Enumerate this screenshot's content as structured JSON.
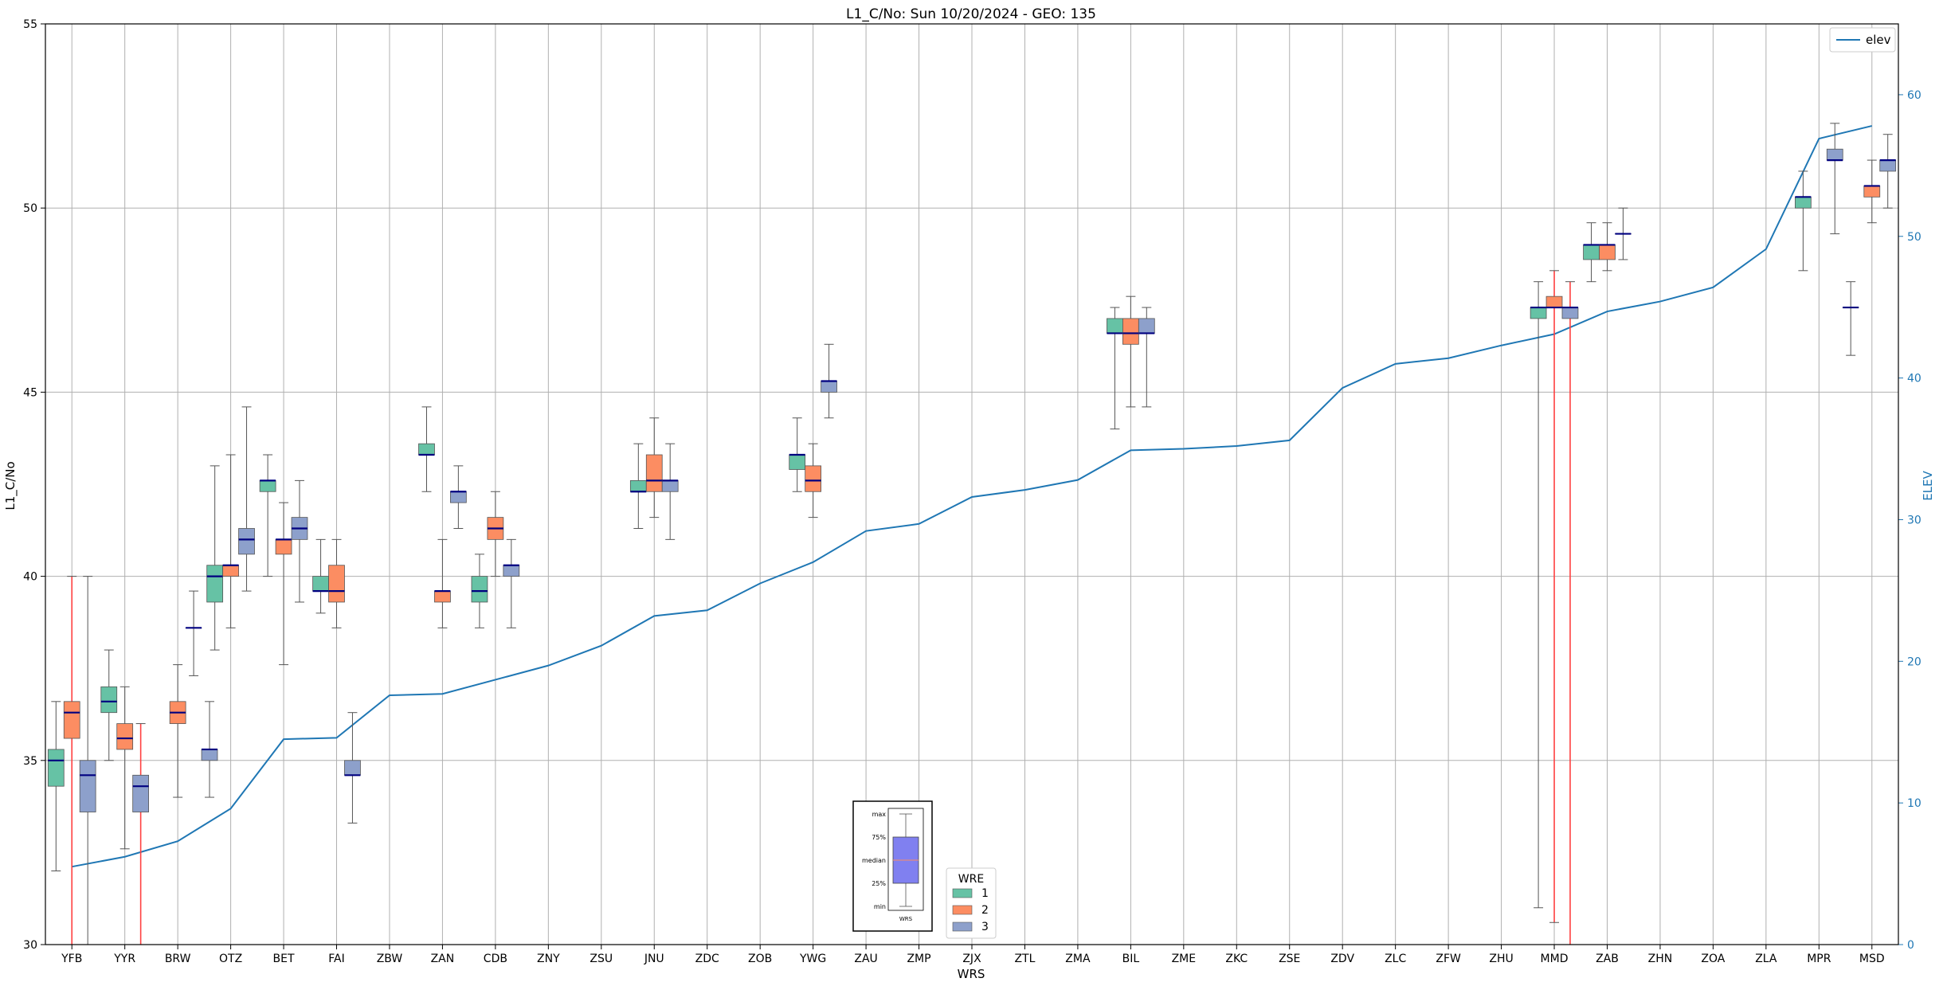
{
  "chart_data": {
    "type": "box",
    "title": "L1_C/No: Sun 10/20/2024 - GEO: 135",
    "xlabel": "WRS",
    "ylabel": "L1_C/No",
    "y2label": "ELEV",
    "ylim": [
      30,
      55
    ],
    "y2lim": [
      0,
      65
    ],
    "yticks": [
      "30",
      "35",
      "40",
      "45",
      "50",
      "55"
    ],
    "y2ticks": [
      "0",
      "10",
      "20",
      "30",
      "40",
      "50",
      "60"
    ],
    "grid": true,
    "categories": [
      "YFB",
      "YYR",
      "BRW",
      "OTZ",
      "BET",
      "FAI",
      "ZBW",
      "ZAN",
      "CDB",
      "ZNY",
      "ZSU",
      "JNU",
      "ZDC",
      "ZOB",
      "YWG",
      "ZAU",
      "ZMP",
      "ZJX",
      "ZTL",
      "ZMA",
      "BIL",
      "ZME",
      "ZKC",
      "ZSE",
      "ZDV",
      "ZLC",
      "ZFW",
      "ZHU",
      "MMD",
      "ZAB",
      "ZHN",
      "ZOA",
      "ZLA",
      "MPR",
      "MSD"
    ],
    "elev_line": {
      "name": "elev",
      "color": "#1f77b4",
      "values": [
        5.5,
        6.2,
        7.3,
        9.6,
        14.5,
        14.6,
        17.6,
        17.7,
        18.7,
        19.7,
        21.1,
        23.2,
        23.6,
        25.5,
        27.0,
        29.2,
        29.7,
        31.6,
        32.1,
        32.8,
        34.9,
        35.0,
        35.2,
        35.6,
        39.3,
        41.0,
        41.4,
        42.3,
        43.1,
        44.7,
        45.4,
        46.4,
        49.1,
        56.9,
        57.8
      ]
    },
    "wre_colors": {
      "1": "#66c2a5",
      "2": "#fc8d62",
      "3": "#8da0cb"
    },
    "series": [
      {
        "name": "1",
        "color": "#66c2a5",
        "boxes": [
          {
            "x": "YFB",
            "min": 32.0,
            "q1": 34.3,
            "median": 35.0,
            "q3": 35.3,
            "max": 36.6
          },
          {
            "x": "YYR",
            "min": 35.0,
            "q1": 36.3,
            "median": 36.6,
            "q3": 37.0,
            "max": 38.0
          },
          {
            "x": "OTZ",
            "min": 38.0,
            "q1": 39.3,
            "median": 40.0,
            "q3": 40.3,
            "max": 43.0
          },
          {
            "x": "BET",
            "min": 40.0,
            "q1": 42.3,
            "median": 42.6,
            "q3": 42.6,
            "max": 43.3
          },
          {
            "x": "FAI",
            "min": 39.0,
            "q1": 39.6,
            "median": 39.6,
            "q3": 40.0,
            "max": 41.0
          },
          {
            "x": "ZAN",
            "min": 42.3,
            "q1": 43.3,
            "median": 43.3,
            "q3": 43.6,
            "max": 44.6
          },
          {
            "x": "CDB",
            "min": 38.6,
            "q1": 39.3,
            "median": 39.6,
            "q3": 40.0,
            "max": 40.6
          },
          {
            "x": "JNU",
            "min": 41.3,
            "q1": 42.3,
            "median": 42.3,
            "q3": 42.6,
            "max": 43.6
          },
          {
            "x": "YWG",
            "min": 42.3,
            "q1": 42.9,
            "median": 43.3,
            "q3": 43.3,
            "max": 44.3
          },
          {
            "x": "BIL",
            "min": 44.0,
            "q1": 46.6,
            "median": 46.6,
            "q3": 47.0,
            "max": 47.3
          },
          {
            "x": "MMD",
            "min": 31.0,
            "q1": 47.0,
            "median": 47.3,
            "q3": 47.3,
            "max": 48.0
          },
          {
            "x": "ZAB",
            "min": 48.0,
            "q1": 48.6,
            "median": 49.0,
            "q3": 49.0,
            "max": 49.6
          },
          {
            "x": "MPR",
            "min": 48.3,
            "q1": 50.0,
            "median": 50.3,
            "q3": 50.3,
            "max": 51.0
          }
        ]
      },
      {
        "name": "2",
        "color": "#fc8d62",
        "boxes": [
          {
            "x": "YFB",
            "min": 30.0,
            "q1": 35.6,
            "median": 36.3,
            "q3": 36.6,
            "max": 40.0,
            "outlier_range": true
          },
          {
            "x": "YYR",
            "min": 32.6,
            "q1": 35.3,
            "median": 35.6,
            "q3": 36.0,
            "max": 37.0
          },
          {
            "x": "BRW",
            "min": 34.0,
            "q1": 36.0,
            "median": 36.3,
            "q3": 36.6,
            "max": 37.6
          },
          {
            "x": "OTZ",
            "min": 38.6,
            "q1": 40.0,
            "median": 40.3,
            "q3": 40.3,
            "max": 43.3
          },
          {
            "x": "BET",
            "min": 37.6,
            "q1": 40.6,
            "median": 41.0,
            "q3": 41.0,
            "max": 42.0
          },
          {
            "x": "FAI",
            "min": 38.6,
            "q1": 39.3,
            "median": 39.6,
            "q3": 40.3,
            "max": 41.0
          },
          {
            "x": "ZAN",
            "min": 38.6,
            "q1": 39.3,
            "median": 39.6,
            "q3": 39.6,
            "max": 41.0
          },
          {
            "x": "CDB",
            "min": 40.0,
            "q1": 41.0,
            "median": 41.3,
            "q3": 41.6,
            "max": 42.3
          },
          {
            "x": "JNU",
            "min": 41.6,
            "q1": 42.3,
            "median": 42.6,
            "q3": 43.3,
            "max": 44.3
          },
          {
            "x": "YWG",
            "min": 41.6,
            "q1": 42.3,
            "median": 42.6,
            "q3": 43.0,
            "max": 43.6
          },
          {
            "x": "BIL",
            "min": 44.6,
            "q1": 46.3,
            "median": 46.6,
            "q3": 47.0,
            "max": 47.6
          },
          {
            "x": "MMD",
            "min": 30.6,
            "q1": 47.3,
            "median": 47.3,
            "q3": 47.6,
            "max": 48.3,
            "outlier_range": true
          },
          {
            "x": "ZAB",
            "min": 48.3,
            "q1": 48.6,
            "median": 49.0,
            "q3": 49.0,
            "max": 49.6
          },
          {
            "x": "MSD",
            "min": 49.6,
            "q1": 50.3,
            "median": 50.6,
            "q3": 50.6,
            "max": 51.3
          }
        ]
      },
      {
        "name": "3",
        "color": "#8da0cb",
        "boxes": [
          {
            "x": "YFB",
            "min": 30.0,
            "q1": 33.6,
            "median": 34.6,
            "q3": 35.0,
            "max": 40.0
          },
          {
            "x": "YYR",
            "min": 30.0,
            "q1": 33.6,
            "median": 34.3,
            "q3": 34.6,
            "max": 36.0,
            "outlier_range": true
          },
          {
            "x": "BRW",
            "min": 37.3,
            "q1": 38.6,
            "median": 38.6,
            "q3": 38.6,
            "max": 39.6
          },
          {
            "x": "BRW",
            "min": 34.0,
            "q1": 35.0,
            "median": 35.3,
            "q3": 35.3,
            "max": 36.6,
            "slot": 2
          },
          {
            "x": "OTZ",
            "min": 39.6,
            "q1": 40.6,
            "median": 41.0,
            "q3": 41.3,
            "max": 44.6
          },
          {
            "x": "BET",
            "min": 39.3,
            "q1": 41.0,
            "median": 41.3,
            "q3": 41.6,
            "max": 42.6
          },
          {
            "x": "FAI",
            "min": 33.3,
            "q1": 34.6,
            "median": 34.6,
            "q3": 35.0,
            "max": 36.3
          },
          {
            "x": "ZAN",
            "min": 41.3,
            "q1": 42.0,
            "median": 42.3,
            "q3": 42.3,
            "max": 43.0
          },
          {
            "x": "CDB",
            "min": 38.6,
            "q1": 40.0,
            "median": 40.3,
            "q3": 40.3,
            "max": 41.0
          },
          {
            "x": "JNU",
            "min": 41.0,
            "q1": 42.3,
            "median": 42.6,
            "q3": 42.6,
            "max": 43.6
          },
          {
            "x": "YWG",
            "min": 44.3,
            "q1": 45.0,
            "median": 45.3,
            "q3": 45.3,
            "max": 46.3
          },
          {
            "x": "BIL",
            "min": 44.6,
            "q1": 46.6,
            "median": 46.6,
            "q3": 47.0,
            "max": 47.3
          },
          {
            "x": "MMD",
            "min": 30.0,
            "q1": 47.0,
            "median": 47.3,
            "q3": 47.3,
            "max": 48.0,
            "outlier_range": true
          },
          {
            "x": "ZAB",
            "min": 48.6,
            "q1": 49.3,
            "median": 49.3,
            "q3": 49.3,
            "max": 50.0
          },
          {
            "x": "MPR",
            "min": 49.3,
            "q1": 51.3,
            "median": 51.3,
            "q3": 51.6,
            "max": 52.3
          },
          {
            "x": "MPR",
            "min": 46.0,
            "q1": 47.3,
            "median": 47.3,
            "q3": 47.3,
            "max": 48.0,
            "slot": 2
          },
          {
            "x": "MSD",
            "min": 50.0,
            "q1": 51.0,
            "median": 51.3,
            "q3": 51.3,
            "max": 52.0
          }
        ]
      }
    ],
    "legend": {
      "line_label": "elev",
      "wre_title": "WRE",
      "wre_labels": [
        "1",
        "2",
        "3"
      ],
      "placement_line": "top-right",
      "placement_wre": "bottom-center"
    },
    "key_box": {
      "labels": [
        "max",
        "75%",
        "median",
        "25%",
        "min"
      ],
      "footer": "WRS",
      "color": "#8080f0"
    }
  }
}
